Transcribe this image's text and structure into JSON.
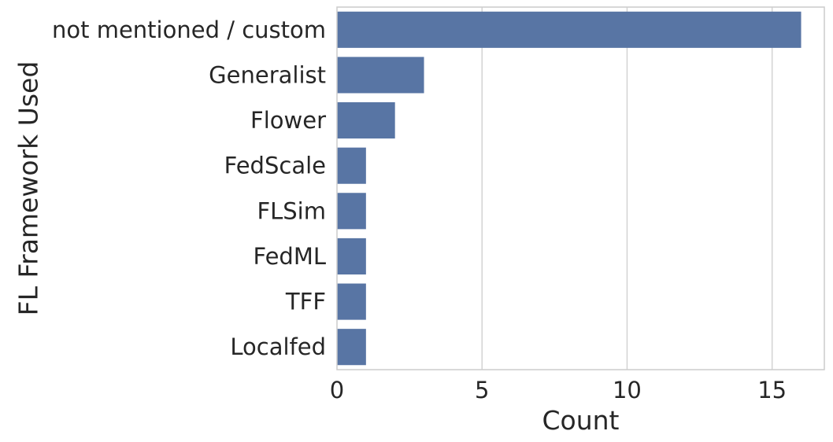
{
  "chart_data": {
    "type": "bar",
    "orientation": "horizontal",
    "title": "",
    "xlabel": "Count",
    "ylabel": "FL Framework Used",
    "categories": [
      "not mentioned / custom",
      "Generalist",
      "Flower",
      "FedScale",
      "FLSim",
      "FedML",
      "TFF",
      "Localfed"
    ],
    "values": [
      16,
      3,
      2,
      1,
      1,
      1,
      1,
      1
    ],
    "xlim": [
      0,
      16.8
    ],
    "xticks": [
      0,
      5,
      10,
      15
    ],
    "xtick_labels": [
      "0",
      "5",
      "10",
      "15"
    ],
    "grid": "vertical",
    "bar_color": "#5875a4",
    "grid_color": "#d3d3d3",
    "spine_color": "#cccccc"
  }
}
